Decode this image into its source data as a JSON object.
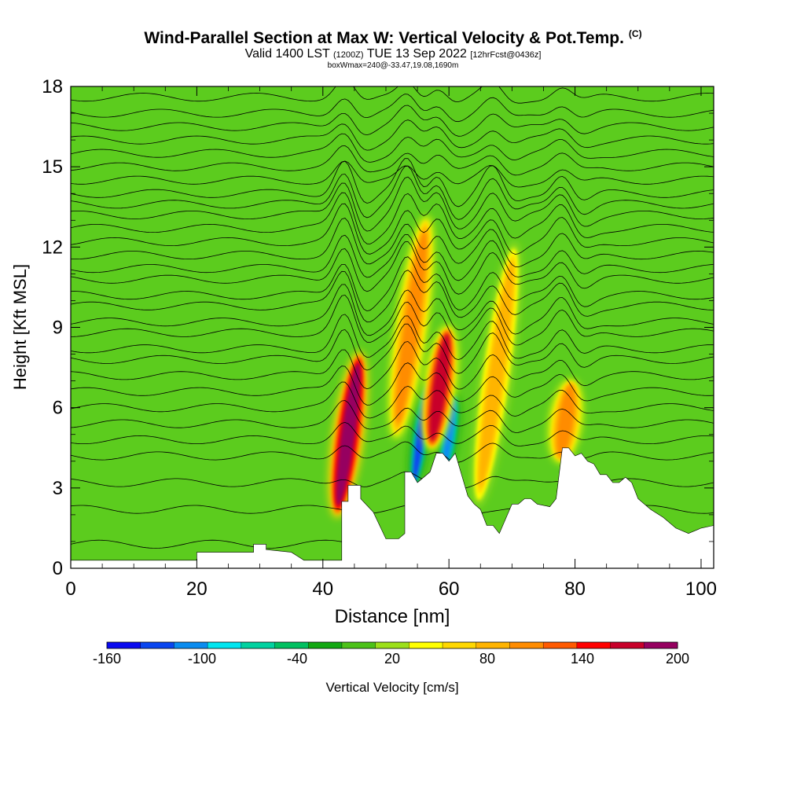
{
  "header": {
    "title": "Wind-Parallel Section at Max W: Vertical Velocity & Pot.Temp.",
    "copyright": "(C)",
    "valid_a": "Valid 1400 LST",
    "valid_utc": "(1200Z)",
    "valid_b": "TUE 13 Sep 2022",
    "forecast": "[12hrFcst@0436z]",
    "box_info": "boxWmax=240@-33.47,19.08,1690m"
  },
  "colors": {
    "background_field": "#5ccc1e",
    "terrain": "#ffffff",
    "contour": "#000000",
    "scale": [
      "#0a0af0",
      "#0a46f0",
      "#0a8cf0",
      "#00e6f0",
      "#00d2a0",
      "#00c060",
      "#12a812",
      "#4cc218",
      "#9ce01a",
      "#ffff00",
      "#ffd800",
      "#ffb400",
      "#ff8c00",
      "#ff5a00",
      "#ff0000",
      "#c8002a",
      "#960060"
    ]
  },
  "chart_data": {
    "type": "heatmap",
    "xlabel": "Distance [nm]",
    "ylabel": "Height [Kft MSL]",
    "xlim": [
      0,
      102
    ],
    "ylim": [
      0,
      18
    ],
    "x_ticks": [
      0,
      20,
      40,
      60,
      80,
      100
    ],
    "y_ticks": [
      0,
      3,
      6,
      9,
      12,
      15,
      18
    ],
    "grid": false,
    "colorbar": {
      "label": "Vertical Velocity [cm/s]",
      "range": [
        -160,
        200
      ],
      "step": 20,
      "tick_labels": [
        "-160",
        "-100",
        "-40",
        "20",
        "80",
        "140",
        "200"
      ]
    },
    "updrafts": [
      {
        "x": 43.5,
        "z_bottom": 2.0,
        "z_top": 8.0,
        "w": 160
      },
      {
        "x": 53.5,
        "z_bottom": 5.0,
        "z_top": 13.0,
        "w": 80
      },
      {
        "x": 58.0,
        "z_bottom": 4.5,
        "z_top": 9.0,
        "w": 140
      },
      {
        "x": 67.0,
        "z_bottom": 2.5,
        "z_top": 12.0,
        "w": 60
      },
      {
        "x": 78.0,
        "z_bottom": 4.0,
        "z_top": 7.0,
        "w": 80
      }
    ],
    "downdrafts": [
      {
        "x": 55.0,
        "z_bottom": 3.0,
        "z_top": 7.0,
        "w": -130
      },
      {
        "x": 59.5,
        "z_bottom": 3.5,
        "z_top": 6.5,
        "w": -110
      }
    ],
    "terrain_profile": {
      "x": [
        0,
        20,
        20,
        29,
        29,
        31,
        31,
        35,
        37,
        40,
        43,
        43,
        44,
        44,
        46,
        46,
        48,
        50,
        52,
        53,
        53,
        54,
        55,
        57,
        58,
        59,
        60,
        61,
        62,
        63,
        64,
        65,
        66,
        67,
        68,
        70,
        71,
        72,
        73,
        74,
        76,
        77,
        78,
        79,
        80,
        81,
        82,
        83,
        84,
        85,
        86,
        87,
        88,
        89,
        90,
        92,
        94,
        96,
        98,
        100,
        102
      ],
      "height": [
        0.3,
        0.3,
        0.6,
        0.6,
        0.9,
        0.9,
        0.7,
        0.6,
        0.3,
        0.3,
        0.3,
        2.5,
        2.5,
        3.1,
        3.1,
        2.6,
        2.1,
        1.1,
        1.1,
        1.3,
        3.6,
        3.6,
        3.2,
        3.6,
        4.3,
        4.3,
        4.0,
        4.3,
        3.5,
        2.7,
        2.4,
        2.2,
        1.6,
        1.6,
        1.3,
        2.4,
        2.4,
        2.6,
        2.6,
        2.4,
        2.3,
        2.6,
        4.5,
        4.5,
        4.2,
        4.3,
        4.0,
        3.9,
        3.5,
        3.5,
        3.2,
        3.2,
        3.4,
        3.2,
        2.6,
        2.2,
        1.9,
        1.5,
        1.3,
        1.5,
        1.6
      ]
    },
    "theta_contours_height_kft": [
      0.9,
      2.2,
      3.2,
      4.2,
      4.8,
      5.4,
      6.0,
      6.6,
      7.2,
      7.8,
      8.2,
      8.8,
      9.2,
      9.8,
      10.2,
      10.8,
      11.2,
      11.7,
      12.2,
      12.7,
      13.2,
      13.6,
      14.0,
      14.5,
      15.0,
      15.5,
      16.0,
      16.5,
      17.0,
      17.6
    ]
  }
}
